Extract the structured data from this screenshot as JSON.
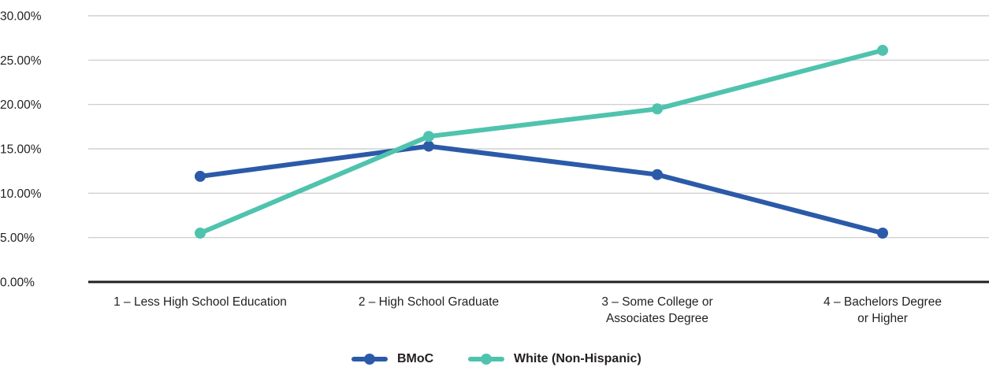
{
  "chart_data": {
    "type": "line",
    "categories": [
      [
        "1 – Less High School Education"
      ],
      [
        "2 – High School Graduate"
      ],
      [
        "3 – Some College or",
        "Associates Degree"
      ],
      [
        "4 – Bachelors Degree",
        "or Higher"
      ]
    ],
    "series": [
      {
        "name": "BMoC",
        "color": "#2b5aa8",
        "values": [
          11.9,
          15.3,
          12.1,
          5.5
        ]
      },
      {
        "name": "White (Non-Hispanic)",
        "color": "#4fc3ad",
        "values": [
          5.5,
          16.4,
          19.5,
          26.1
        ]
      }
    ],
    "yticks": [
      "0.00%",
      "5.00%",
      "10.00%",
      "15.00%",
      "20.00%",
      "25.00%",
      "30.00%"
    ],
    "ylim": [
      0,
      30
    ],
    "grid": true,
    "legend_position": "bottom-center"
  }
}
